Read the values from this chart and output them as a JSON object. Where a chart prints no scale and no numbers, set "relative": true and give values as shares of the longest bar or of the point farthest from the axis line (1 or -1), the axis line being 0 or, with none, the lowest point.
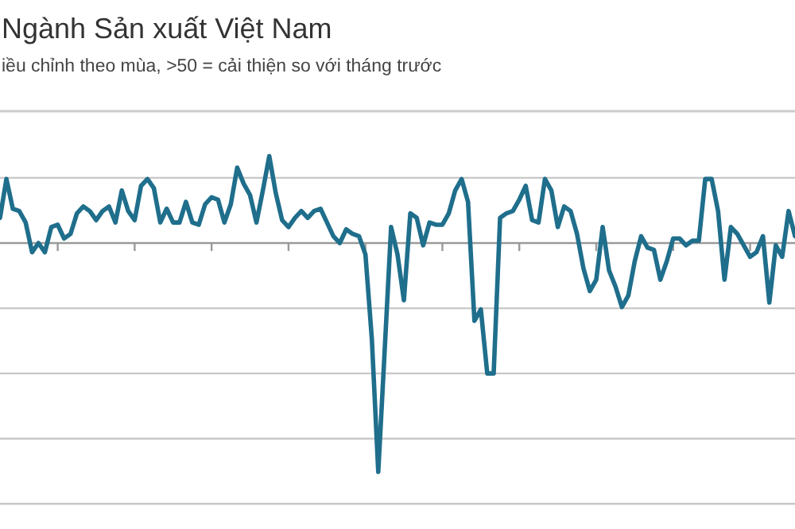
{
  "chart_data": {
    "type": "line",
    "title": "Ngành Sản xuất Việt Nam",
    "subtitle": "iều chỉnh theo mùa, >50 = cải thiện so với tháng trước",
    "relative": true,
    "grid": "y",
    "marker": "none",
    "line_style": "solid",
    "categories": [
      null,
      null,
      null,
      null,
      null,
      null,
      null,
      null,
      null,
      null,
      null,
      null,
      null,
      null,
      null,
      null,
      null,
      null,
      null,
      null,
      null,
      null,
      null,
      null,
      null,
      null,
      null,
      null,
      null,
      null,
      null,
      null,
      null,
      null,
      null,
      null,
      null,
      null,
      null,
      null,
      null,
      null,
      null,
      null,
      null,
      null,
      null,
      null,
      null,
      null,
      null,
      null,
      null,
      null,
      null,
      null,
      null,
      null,
      null,
      null,
      null,
      null,
      null,
      null,
      null,
      null,
      null,
      null,
      null,
      null,
      null,
      null,
      null,
      null,
      null,
      null,
      null,
      null,
      null,
      null,
      null,
      null,
      null,
      null,
      null,
      null,
      null,
      null,
      null,
      null,
      null,
      null,
      null,
      null,
      null,
      null,
      null,
      null,
      null,
      null,
      null,
      null,
      null,
      null,
      null,
      null,
      null,
      null,
      null,
      null,
      null,
      null,
      null,
      null,
      null,
      null,
      null,
      null,
      null,
      null,
      null,
      null,
      null,
      null,
      null
    ],
    "series": [
      {
        "color": "#1f6e8c",
        "values": [
          0.11,
          0.28,
          0.15,
          0.14,
          0.09,
          -0.04,
          0.0,
          -0.04,
          0.07,
          0.08,
          0.02,
          0.04,
          0.13,
          0.16,
          0.14,
          0.1,
          0.14,
          0.16,
          0.09,
          0.23,
          0.14,
          0.1,
          0.25,
          0.28,
          0.24,
          0.09,
          0.15,
          0.09,
          0.09,
          0.18,
          0.09,
          0.08,
          0.17,
          0.2,
          0.19,
          0.09,
          0.17,
          0.33,
          0.26,
          0.21,
          0.09,
          0.23,
          0.38,
          0.22,
          0.1,
          0.07,
          0.11,
          0.14,
          0.11,
          0.14,
          0.15,
          0.09,
          0.03,
          0.0,
          0.06,
          0.04,
          0.03,
          -0.05,
          -0.42,
          -1,
          -0.47,
          0.07,
          -0.05,
          -0.25,
          0.13,
          0.11,
          -0.01,
          0.09,
          0.08,
          0.08,
          0.13,
          0.23,
          0.28,
          0.18,
          -0.34,
          -0.29,
          -0.57,
          -0.57,
          0.11,
          0.13,
          0.14,
          0.19,
          0.25,
          0.1,
          0.09,
          0.28,
          0.23,
          0.07,
          0.16,
          0.14,
          0.04,
          -0.11,
          -0.21,
          -0.16,
          0.07,
          -0.12,
          -0.19,
          -0.28,
          -0.23,
          -0.08,
          0.03,
          -0.02,
          -0.03,
          -0.16,
          -0.08,
          0.02,
          0.02,
          -0.01,
          0.01,
          0.01,
          0.28,
          0.28,
          0.14,
          -0.16,
          0.07,
          0.04,
          -0.01,
          -0.06,
          -0.04,
          0.03,
          -0.26,
          -0.01,
          -0.06,
          0.14,
          0.03
        ]
      }
    ]
  }
}
